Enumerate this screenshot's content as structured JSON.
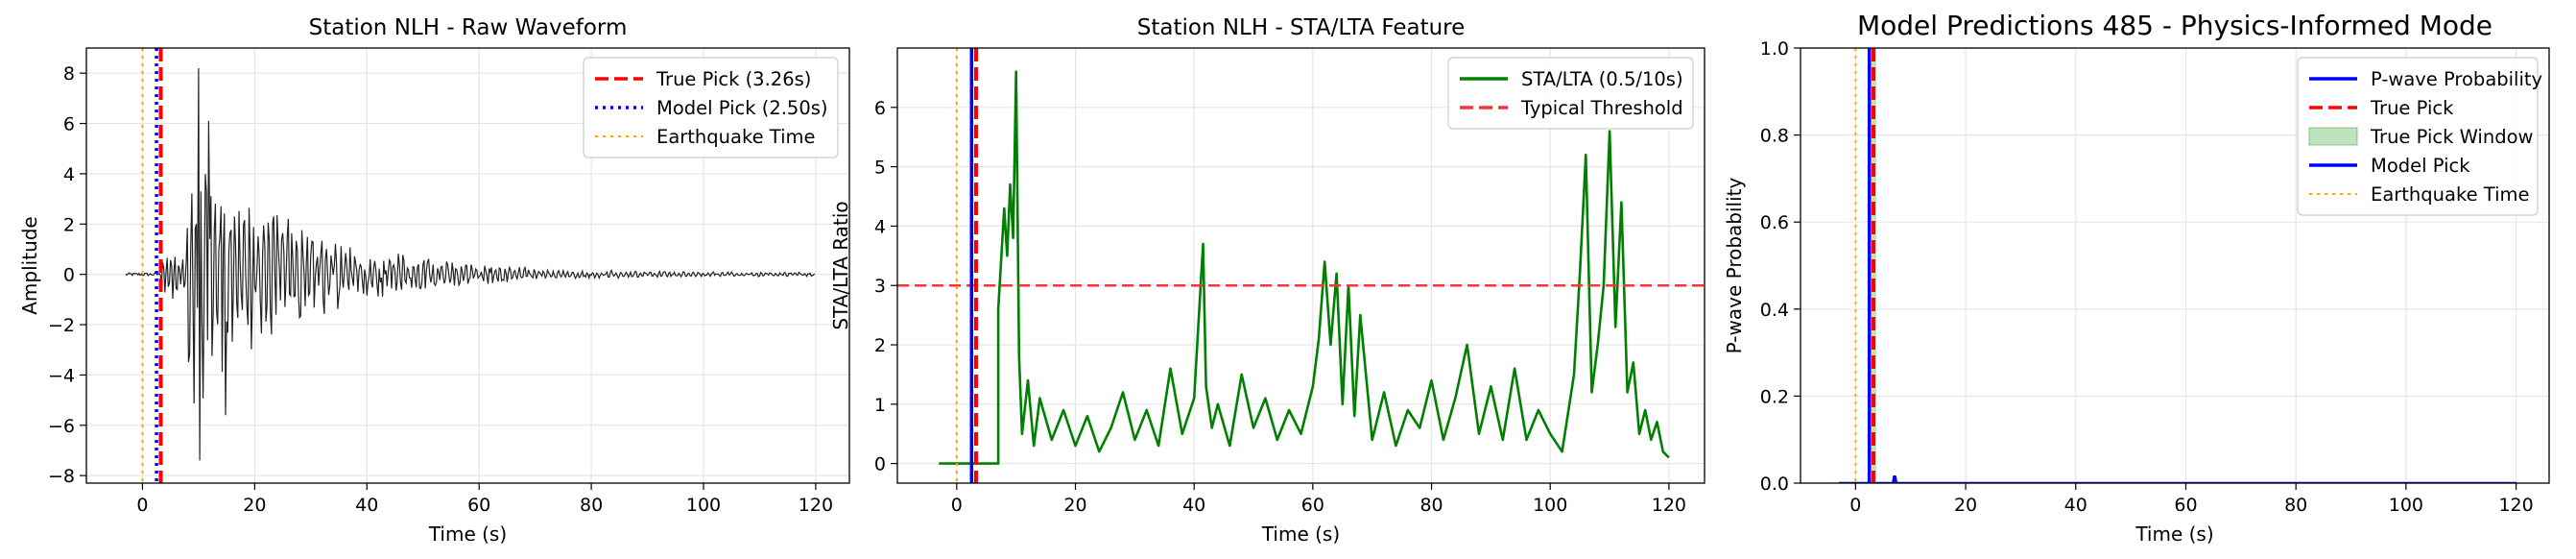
{
  "chart_data": [
    {
      "type": "line",
      "title": "Station NLH - Raw Waveform",
      "xlabel": "Time (s)",
      "ylabel": "Amplitude",
      "xlim": [
        -10,
        126
      ],
      "ylim": [
        -8.3,
        9
      ],
      "xticks": [
        0,
        20,
        40,
        60,
        80,
        100,
        120
      ],
      "yticks": [
        -8,
        -6,
        -4,
        -2,
        0,
        2,
        4,
        6,
        8
      ],
      "grid": true,
      "legend_position": "top-right",
      "series": [
        {
          "kind": "waveform",
          "color": "#222222",
          "x": [
            -3,
            120
          ],
          "description_values": {
            "first_peak_time": 10.0,
            "max_amplitude": 8.2,
            "min_amplitude": -7.4,
            "decay_end_amplitude": 0.05
          }
        },
        {
          "name": "True Pick (3.26s)",
          "kind": "vline",
          "x": 3.26,
          "color": "#ff0000",
          "style": "dashed"
        },
        {
          "name": "Model Pick (2.50s)",
          "kind": "vline",
          "x": 2.5,
          "color": "#0000ff",
          "style": "dotted"
        },
        {
          "name": "Earthquake Time",
          "kind": "vline",
          "x": 0,
          "color": "#ffa500",
          "style": "dotted"
        }
      ]
    },
    {
      "type": "line",
      "title": "Station NLH - STA/LTA Feature",
      "xlabel": "Time (s)",
      "ylabel": "STA/LTA Ratio",
      "xlim": [
        -10,
        126
      ],
      "ylim": [
        -0.33,
        7
      ],
      "xticks": [
        0,
        20,
        40,
        60,
        80,
        100,
        120
      ],
      "yticks": [
        0,
        1,
        2,
        3,
        4,
        5,
        6
      ],
      "grid": true,
      "legend_position": "top-right",
      "series": [
        {
          "name": "STA/LTA (0.5/10s)",
          "kind": "line",
          "color": "#008000",
          "x": [
            -3,
            7,
            7,
            8,
            8.5,
            9,
            9.5,
            10,
            10.5,
            11,
            12,
            13,
            14,
            16,
            18,
            20,
            22,
            24,
            26,
            28,
            30,
            32,
            34,
            36,
            38,
            40,
            41.5,
            42,
            43,
            44,
            46,
            48,
            50,
            52,
            54,
            56,
            58,
            60,
            61,
            62,
            63,
            64,
            65,
            66,
            67,
            68,
            70,
            72,
            74,
            76,
            78,
            80,
            82,
            84,
            86,
            88,
            90,
            92,
            94,
            96,
            98,
            100,
            102,
            104,
            105,
            106,
            107,
            108,
            109,
            110,
            111,
            112,
            113,
            114,
            115,
            116,
            117,
            118,
            119,
            120
          ],
          "y": [
            0,
            0,
            2.6,
            4.3,
            3.5,
            4.7,
            3.8,
            6.6,
            1.8,
            0.5,
            1.4,
            0.3,
            1.1,
            0.4,
            0.9,
            0.3,
            0.8,
            0.2,
            0.6,
            1.2,
            0.4,
            0.9,
            0.3,
            1.6,
            0.5,
            1.1,
            3.7,
            1.3,
            0.6,
            1.0,
            0.3,
            1.5,
            0.6,
            1.1,
            0.4,
            0.9,
            0.5,
            1.3,
            2.1,
            3.4,
            2.0,
            3.2,
            1.0,
            3.0,
            0.8,
            2.5,
            0.4,
            1.2,
            0.3,
            0.9,
            0.6,
            1.4,
            0.4,
            1.1,
            2.0,
            0.5,
            1.3,
            0.4,
            1.6,
            0.4,
            0.9,
            0.5,
            0.2,
            1.5,
            3.2,
            5.2,
            1.2,
            2.0,
            3.0,
            5.6,
            2.3,
            4.4,
            1.2,
            1.7,
            0.5,
            0.9,
            0.4,
            0.7,
            0.2,
            0.1
          ]
        },
        {
          "name": "Typical Threshold",
          "kind": "hline",
          "y": 3,
          "color": "#ff3333",
          "style": "dashed"
        },
        {
          "kind": "vline",
          "x": 3.26,
          "color": "#ff0000",
          "style": "dashed"
        },
        {
          "kind": "vline",
          "x": 2.5,
          "color": "#0000ff",
          "style": "solid"
        },
        {
          "kind": "vline",
          "x": 0,
          "color": "#ffa500",
          "style": "dotted"
        }
      ]
    },
    {
      "type": "line",
      "title": "Model Predictions 485 - Physics-Informed Mode",
      "xlabel": "Time (s)",
      "ylabel": "P-wave Probability",
      "xlim": [
        -10,
        126
      ],
      "ylim": [
        0,
        1
      ],
      "xticks": [
        0,
        20,
        40,
        60,
        80,
        100,
        120
      ],
      "yticks": [
        0.0,
        0.2,
        0.4,
        0.6,
        0.8,
        1.0
      ],
      "grid": true,
      "legend_position": "top-right",
      "series": [
        {
          "name": "P-wave Probability",
          "kind": "line",
          "color": "#0000ff",
          "x": [
            -3,
            6.8,
            7,
            7.2,
            7.4,
            120
          ],
          "y": [
            0,
            0,
            0.015,
            0.015,
            0,
            0
          ]
        },
        {
          "name": "True Pick",
          "kind": "vline",
          "x": 3.26,
          "color": "#ff0000",
          "style": "dashed"
        },
        {
          "name": "True Pick Window",
          "kind": "span",
          "x0": 2.76,
          "x1": 3.76,
          "color": "#2ca02c"
        },
        {
          "name": "Model Pick",
          "kind": "vline",
          "x": 2.5,
          "color": "#0000ff",
          "style": "solid"
        },
        {
          "name": "Earthquake Time",
          "kind": "vline",
          "x": 0,
          "color": "#ffa500",
          "style": "dotted"
        }
      ]
    }
  ]
}
